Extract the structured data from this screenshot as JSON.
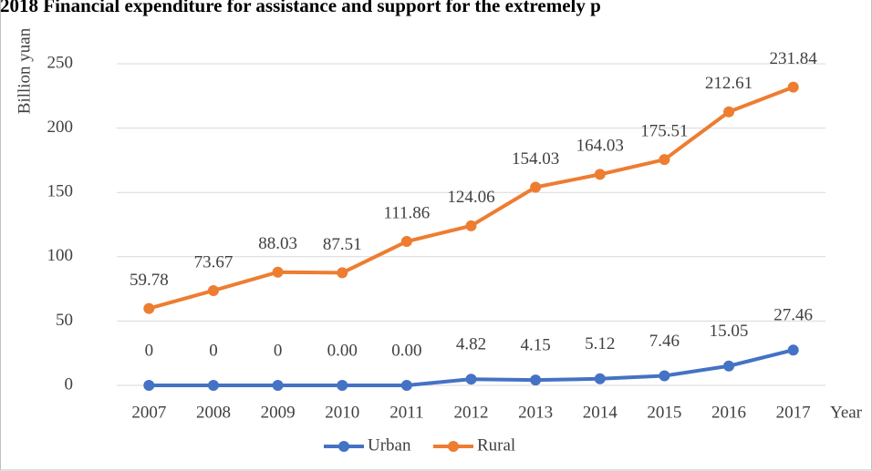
{
  "chart_data": {
    "type": "line",
    "title": "2018 Financial expenditure for assistance and support for the extremely p",
    "y_label": "Billion yuan",
    "x_label": "Year",
    "categories": [
      "2007",
      "2008",
      "2009",
      "2010",
      "2011",
      "2012",
      "2013",
      "2014",
      "2015",
      "2016",
      "2017"
    ],
    "series": [
      {
        "name": "Urban",
        "color": "#4472c4",
        "values": [
          0,
          0,
          0,
          0,
          0,
          4.82,
          4.15,
          5.12,
          7.46,
          15.05,
          27.46
        ],
        "value_labels": [
          "0",
          "0",
          "0",
          "0.00",
          "0.00",
          "4.82",
          "4.15",
          "5.12",
          "7.46",
          "15.05",
          "27.46"
        ]
      },
      {
        "name": "Rural",
        "color": "#ed7d31",
        "values": [
          59.78,
          73.67,
          88.03,
          87.51,
          111.86,
          124.06,
          154.03,
          164.03,
          175.51,
          212.61,
          231.84
        ]
      }
    ],
    "ylim": [
      0,
      250
    ],
    "yticks": [
      0,
      50,
      100,
      150,
      200,
      250
    ],
    "grid": true,
    "legend": "bottom"
  }
}
